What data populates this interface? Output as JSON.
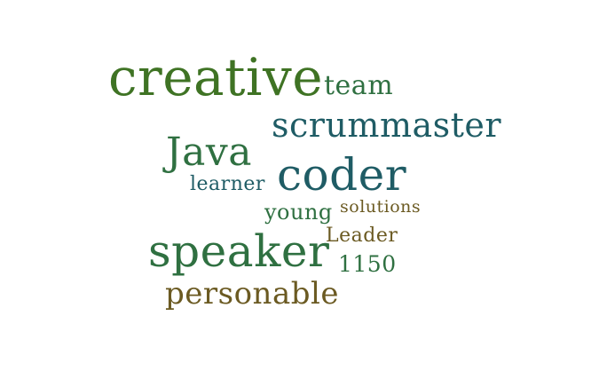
{
  "words": [
    {
      "id": "creative",
      "text": "creative",
      "color": "#3f7324"
    },
    {
      "id": "team",
      "text": "team",
      "color": "#2f7041"
    },
    {
      "id": "scrummaster",
      "text": "scrummaster",
      "color": "#1f5c65"
    },
    {
      "id": "java",
      "text": "Java",
      "color": "#2f7041"
    },
    {
      "id": "coder",
      "text": "coder",
      "color": "#1f5c65"
    },
    {
      "id": "learner",
      "text": "learner",
      "color": "#1f5c65"
    },
    {
      "id": "young",
      "text": "young",
      "color": "#2f7041"
    },
    {
      "id": "solutions",
      "text": "solutions",
      "color": "#6b5a22"
    },
    {
      "id": "leader",
      "text": "Leader",
      "color": "#6b5a22"
    },
    {
      "id": "speaker",
      "text": "speaker",
      "color": "#2f7041"
    },
    {
      "id": "1150",
      "text": "1150",
      "color": "#2f7041"
    },
    {
      "id": "personable",
      "text": "personable",
      "color": "#6b5a22"
    }
  ]
}
